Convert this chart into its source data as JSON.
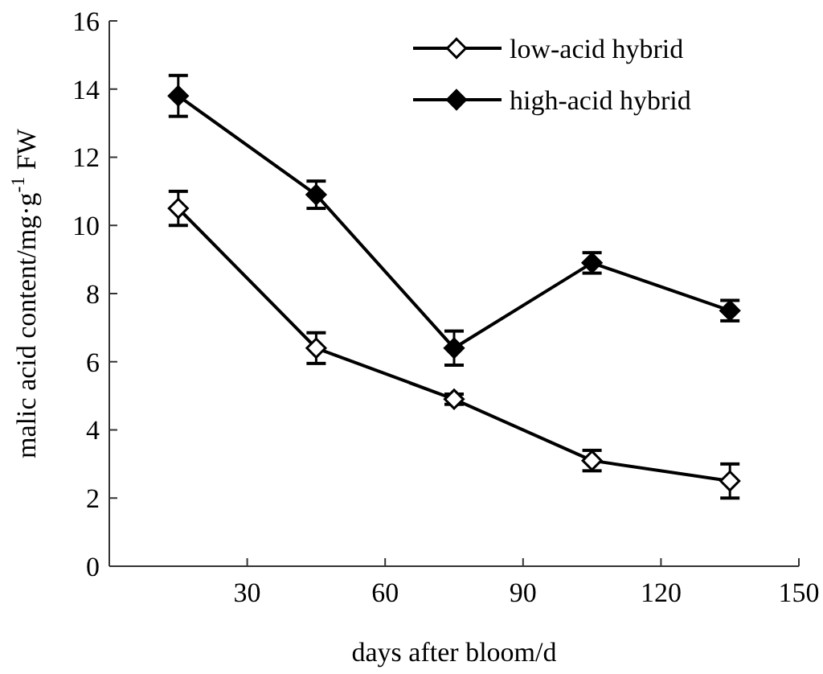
{
  "chart_data": {
    "type": "line",
    "xlabel": "days after bloom/d",
    "ylabel": "malic acid content/mg·g$^{-1}$ FW",
    "x": [
      15,
      45,
      75,
      105,
      135
    ],
    "series": [
      {
        "name": "low-acid hybrid",
        "color": "#000000",
        "values": [
          10.5,
          6.4,
          4.9,
          3.1,
          2.5
        ],
        "errors": [
          0.5,
          0.45,
          0.15,
          0.3,
          0.5
        ]
      },
      {
        "name": "high-acid hybrid",
        "color": "#000000",
        "values": [
          13.8,
          10.9,
          6.4,
          8.9,
          7.5
        ],
        "errors": [
          0.6,
          0.4,
          0.5,
          0.3,
          0.3
        ]
      }
    ],
    "xlim": [
      0,
      150
    ],
    "xticks": [
      30,
      60,
      90,
      120,
      150
    ],
    "ylim": [
      0,
      16
    ],
    "yticks": [
      0,
      2,
      4,
      6,
      8,
      10,
      12,
      14,
      16
    ],
    "grid": false,
    "legend": "top right",
    "marker": "diamond",
    "line_style": "solid"
  }
}
